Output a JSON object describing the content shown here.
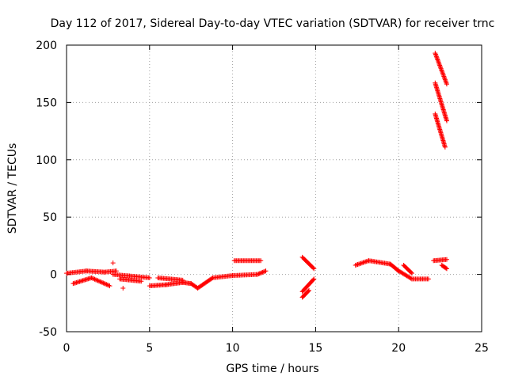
{
  "chart_data": {
    "type": "scatter",
    "title": "Day 112 of 2017, Sidereal Day-to-day VTEC variation (SDTVAR) for receiver trnc",
    "xlabel": "GPS time / hours",
    "ylabel": "SDTVAR / TECUs",
    "xlim": [
      0,
      25
    ],
    "ylim": [
      -50,
      200
    ],
    "xticks": [
      0,
      5,
      10,
      15,
      20,
      25
    ],
    "yticks": [
      -50,
      0,
      50,
      100,
      150,
      200
    ],
    "xtick_labels": [
      "0",
      "5",
      "10",
      "15",
      "20",
      "25"
    ],
    "ytick_labels": [
      "-50",
      "0",
      "50",
      "100",
      "150",
      "200"
    ],
    "grid": true,
    "marker": "plus",
    "color": "#ff0000",
    "segments": [
      {
        "x": [
          0.0,
          1.2,
          2.3,
          3.0
        ],
        "y": [
          1,
          3,
          2,
          3
        ]
      },
      {
        "x": [
          0.4,
          1.5
        ],
        "y": [
          -8,
          -3
        ]
      },
      {
        "x": [
          1.5,
          2.6
        ],
        "y": [
          -3,
          -10
        ]
      },
      {
        "x": [
          2.8,
          5.0
        ],
        "y": [
          0,
          -3
        ]
      },
      {
        "x": [
          3.2,
          4.5
        ],
        "y": [
          -4,
          -6
        ]
      },
      {
        "x": [
          5.0,
          6.0,
          7.0,
          7.5
        ],
        "y": [
          -10,
          -9,
          -7,
          -8
        ]
      },
      {
        "x": [
          5.5,
          7.0
        ],
        "y": [
          -3,
          -5
        ]
      },
      {
        "x": [
          7.5,
          7.9
        ],
        "y": [
          -8,
          -12
        ]
      },
      {
        "x": [
          7.9,
          8.8,
          10.0,
          11.5,
          12.0
        ],
        "y": [
          -12,
          -3,
          -1,
          0,
          3
        ]
      },
      {
        "x": [
          10.1,
          11.7
        ],
        "y": [
          12,
          12
        ]
      },
      {
        "x": [
          14.2,
          14.9
        ],
        "y": [
          15,
          5
        ]
      },
      {
        "x": [
          14.2,
          14.9
        ],
        "y": [
          -15,
          -4
        ]
      },
      {
        "x": [
          14.2,
          14.6
        ],
        "y": [
          -20,
          -14
        ]
      },
      {
        "x": [
          17.4,
          18.2,
          19.5,
          20.0
        ],
        "y": [
          8,
          12,
          9,
          3
        ]
      },
      {
        "x": [
          19.9,
          20.8,
          21.8
        ],
        "y": [
          4,
          -4,
          -4
        ]
      },
      {
        "x": [
          20.3,
          20.8
        ],
        "y": [
          8,
          1
        ]
      },
      {
        "x": [
          22.1,
          22.9
        ],
        "y": [
          12,
          13
        ]
      },
      {
        "x": [
          22.6,
          22.9
        ],
        "y": [
          8,
          5
        ]
      },
      {
        "x": [
          22.2,
          22.9
        ],
        "y": [
          193,
          166
        ]
      },
      {
        "x": [
          22.2,
          22.9
        ],
        "y": [
          167,
          134
        ]
      },
      {
        "x": [
          22.2,
          22.8
        ],
        "y": [
          140,
          111
        ]
      }
    ],
    "outliers": [
      {
        "x": 2.8,
        "y": 10
      },
      {
        "x": 3.4,
        "y": -12
      }
    ]
  }
}
